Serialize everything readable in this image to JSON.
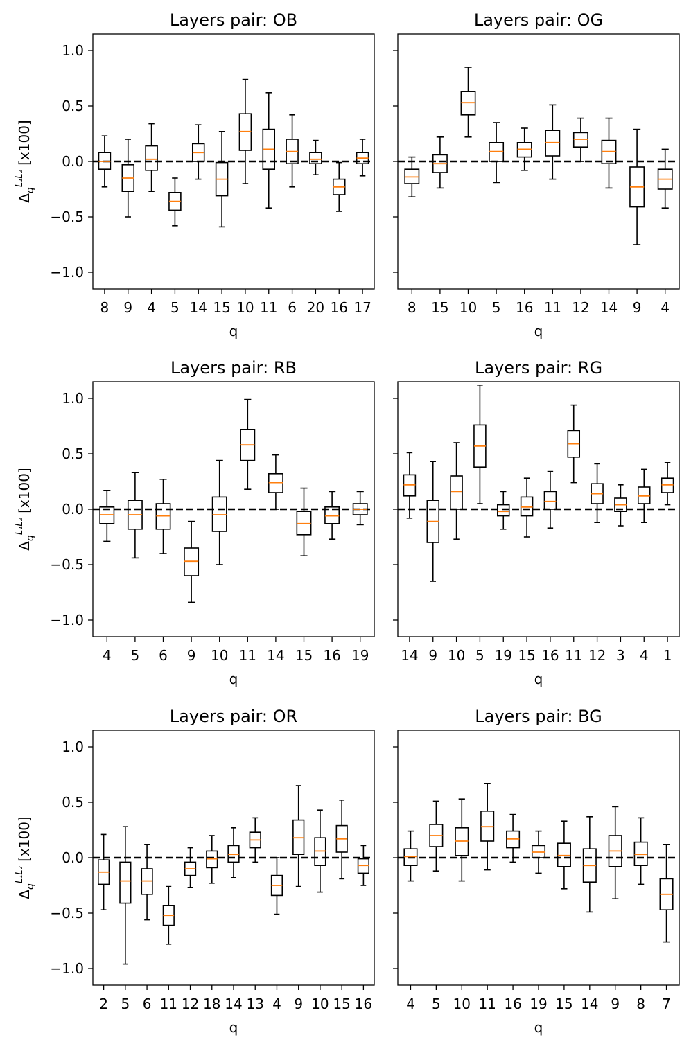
{
  "figure": {
    "ylabel_prefix": "Δ",
    "ylabel_sub": "q",
    "ylabel_sup": "L₁L₂",
    "ylabel_suffix": " [x100]",
    "ylim": [
      -1.15,
      1.15
    ],
    "yticks": [
      -1.0,
      -0.5,
      0.0,
      0.5,
      1.0
    ],
    "ytick_labels": [
      "−1.0",
      "−0.5",
      "0.0",
      "0.5",
      "1.0"
    ],
    "reference_line": 0.0,
    "colors": {
      "box": "#000000",
      "median": "#ff7f0e",
      "reference": "#000000"
    }
  },
  "chart_data": [
    {
      "type": "boxplot",
      "title": "Layers pair: OB",
      "xlabel": "q",
      "ylabel": "Δ_q^{L1L2} [x100]",
      "categories": [
        "8",
        "9",
        "4",
        "5",
        "14",
        "15",
        "10",
        "11",
        "6",
        "20",
        "16",
        "17"
      ],
      "boxes": [
        {
          "min": -0.23,
          "q1": -0.07,
          "median": 0.0,
          "q3": 0.08,
          "max": 0.23
        },
        {
          "min": -0.5,
          "q1": -0.27,
          "median": -0.15,
          "q3": -0.03,
          "max": 0.2
        },
        {
          "min": -0.27,
          "q1": -0.08,
          "median": 0.02,
          "q3": 0.14,
          "max": 0.34
        },
        {
          "min": -0.58,
          "q1": -0.44,
          "median": -0.36,
          "q3": -0.28,
          "max": -0.15
        },
        {
          "min": -0.16,
          "q1": 0.0,
          "median": 0.08,
          "q3": 0.16,
          "max": 0.33
        },
        {
          "min": -0.59,
          "q1": -0.31,
          "median": -0.16,
          "q3": -0.01,
          "max": 0.27
        },
        {
          "min": -0.2,
          "q1": 0.1,
          "median": 0.27,
          "q3": 0.43,
          "max": 0.74
        },
        {
          "min": -0.42,
          "q1": -0.07,
          "median": 0.11,
          "q3": 0.29,
          "max": 0.62
        },
        {
          "min": -0.23,
          "q1": -0.02,
          "median": 0.09,
          "q3": 0.2,
          "max": 0.42
        },
        {
          "min": -0.12,
          "q1": -0.02,
          "median": 0.02,
          "q3": 0.08,
          "max": 0.19
        },
        {
          "min": -0.45,
          "q1": -0.3,
          "median": -0.23,
          "q3": -0.16,
          "max": -0.01
        },
        {
          "min": -0.13,
          "q1": -0.02,
          "median": 0.03,
          "q3": 0.08,
          "max": 0.2
        }
      ]
    },
    {
      "type": "boxplot",
      "title": "Layers pair: OG",
      "xlabel": "q",
      "ylabel": "",
      "categories": [
        "8",
        "15",
        "10",
        "5",
        "16",
        "11",
        "12",
        "14",
        "9",
        "4"
      ],
      "boxes": [
        {
          "min": -0.32,
          "q1": -0.2,
          "median": -0.14,
          "q3": -0.07,
          "max": 0.04
        },
        {
          "min": -0.24,
          "q1": -0.1,
          "median": -0.02,
          "q3": 0.06,
          "max": 0.22
        },
        {
          "min": 0.22,
          "q1": 0.42,
          "median": 0.53,
          "q3": 0.63,
          "max": 0.85
        },
        {
          "min": -0.19,
          "q1": 0.0,
          "median": 0.09,
          "q3": 0.17,
          "max": 0.35
        },
        {
          "min": -0.08,
          "q1": 0.04,
          "median": 0.11,
          "q3": 0.17,
          "max": 0.3
        },
        {
          "min": -0.16,
          "q1": 0.05,
          "median": 0.17,
          "q3": 0.28,
          "max": 0.51
        },
        {
          "min": 0.0,
          "q1": 0.13,
          "median": 0.2,
          "q3": 0.26,
          "max": 0.39
        },
        {
          "min": -0.24,
          "q1": -0.02,
          "median": 0.09,
          "q3": 0.19,
          "max": 0.39
        },
        {
          "min": -0.75,
          "q1": -0.41,
          "median": -0.23,
          "q3": -0.05,
          "max": 0.29
        },
        {
          "min": -0.42,
          "q1": -0.25,
          "median": -0.16,
          "q3": -0.07,
          "max": 0.11
        }
      ]
    },
    {
      "type": "boxplot",
      "title": "Layers pair: RB",
      "xlabel": "q",
      "ylabel": "Δ_q^{L1L2} [x100]",
      "categories": [
        "4",
        "5",
        "6",
        "9",
        "10",
        "11",
        "14",
        "15",
        "16",
        "19"
      ],
      "boxes": [
        {
          "min": -0.29,
          "q1": -0.13,
          "median": -0.05,
          "q3": 0.02,
          "max": 0.17
        },
        {
          "min": -0.44,
          "q1": -0.18,
          "median": -0.05,
          "q3": 0.08,
          "max": 0.33
        },
        {
          "min": -0.4,
          "q1": -0.18,
          "median": -0.06,
          "q3": 0.05,
          "max": 0.27
        },
        {
          "min": -0.84,
          "q1": -0.6,
          "median": -0.47,
          "q3": -0.35,
          "max": -0.11
        },
        {
          "min": -0.5,
          "q1": -0.2,
          "median": -0.05,
          "q3": 0.11,
          "max": 0.44
        },
        {
          "min": 0.18,
          "q1": 0.44,
          "median": 0.58,
          "q3": 0.72,
          "max": 0.99
        },
        {
          "min": 0.0,
          "q1": 0.15,
          "median": 0.24,
          "q3": 0.32,
          "max": 0.49
        },
        {
          "min": -0.42,
          "q1": -0.23,
          "median": -0.13,
          "q3": -0.02,
          "max": 0.19
        },
        {
          "min": -0.27,
          "q1": -0.13,
          "median": -0.06,
          "q3": 0.02,
          "max": 0.16
        },
        {
          "min": -0.14,
          "q1": -0.05,
          "median": 0.0,
          "q3": 0.05,
          "max": 0.16
        }
      ]
    },
    {
      "type": "boxplot",
      "title": "Layers pair: RG",
      "xlabel": "q",
      "ylabel": "",
      "categories": [
        "14",
        "9",
        "10",
        "5",
        "19",
        "15",
        "16",
        "11",
        "12",
        "3",
        "4",
        "1"
      ],
      "boxes": [
        {
          "min": -0.08,
          "q1": 0.12,
          "median": 0.22,
          "q3": 0.31,
          "max": 0.51
        },
        {
          "min": -0.65,
          "q1": -0.3,
          "median": -0.11,
          "q3": 0.08,
          "max": 0.43
        },
        {
          "min": -0.27,
          "q1": 0.0,
          "median": 0.16,
          "q3": 0.3,
          "max": 0.6
        },
        {
          "min": 0.05,
          "q1": 0.38,
          "median": 0.57,
          "q3": 0.76,
          "max": 1.12
        },
        {
          "min": -0.18,
          "q1": -0.06,
          "median": -0.02,
          "q3": 0.04,
          "max": 0.16
        },
        {
          "min": -0.25,
          "q1": -0.06,
          "median": 0.02,
          "q3": 0.11,
          "max": 0.28
        },
        {
          "min": -0.17,
          "q1": 0.0,
          "median": 0.07,
          "q3": 0.16,
          "max": 0.34
        },
        {
          "min": 0.24,
          "q1": 0.47,
          "median": 0.59,
          "q3": 0.71,
          "max": 0.94
        },
        {
          "min": -0.12,
          "q1": 0.05,
          "median": 0.14,
          "q3": 0.23,
          "max": 0.41
        },
        {
          "min": -0.15,
          "q1": -0.02,
          "median": 0.04,
          "q3": 0.1,
          "max": 0.22
        },
        {
          "min": -0.12,
          "q1": 0.05,
          "median": 0.12,
          "q3": 0.2,
          "max": 0.36
        },
        {
          "min": 0.04,
          "q1": 0.15,
          "median": 0.22,
          "q3": 0.28,
          "max": 0.42
        }
      ]
    },
    {
      "type": "boxplot",
      "title": "Layers pair: OR",
      "xlabel": "q",
      "ylabel": "Δ_q^{L1L2} [x100]",
      "categories": [
        "2",
        "5",
        "6",
        "11",
        "12",
        "18",
        "14",
        "13",
        "4",
        "9",
        "10",
        "15",
        "16"
      ],
      "boxes": [
        {
          "min": -0.47,
          "q1": -0.24,
          "median": -0.13,
          "q3": -0.02,
          "max": 0.21
        },
        {
          "min": -0.96,
          "q1": -0.41,
          "median": -0.21,
          "q3": -0.04,
          "max": 0.28
        },
        {
          "min": -0.56,
          "q1": -0.33,
          "median": -0.21,
          "q3": -0.1,
          "max": 0.12
        },
        {
          "min": -0.78,
          "q1": -0.61,
          "median": -0.52,
          "q3": -0.43,
          "max": -0.26
        },
        {
          "min": -0.27,
          "q1": -0.16,
          "median": -0.1,
          "q3": -0.04,
          "max": 0.09
        },
        {
          "min": -0.23,
          "q1": -0.09,
          "median": -0.01,
          "q3": 0.06,
          "max": 0.2
        },
        {
          "min": -0.18,
          "q1": -0.04,
          "median": 0.03,
          "q3": 0.11,
          "max": 0.27
        },
        {
          "min": -0.04,
          "q1": 0.09,
          "median": 0.16,
          "q3": 0.23,
          "max": 0.36
        },
        {
          "min": -0.51,
          "q1": -0.34,
          "median": -0.25,
          "q3": -0.16,
          "max": 0.0
        },
        {
          "min": -0.26,
          "q1": 0.03,
          "median": 0.18,
          "q3": 0.34,
          "max": 0.65
        },
        {
          "min": -0.31,
          "q1": -0.07,
          "median": 0.06,
          "q3": 0.18,
          "max": 0.43
        },
        {
          "min": -0.19,
          "q1": 0.05,
          "median": 0.17,
          "q3": 0.29,
          "max": 0.52
        },
        {
          "min": -0.25,
          "q1": -0.14,
          "median": -0.07,
          "q3": -0.01,
          "max": 0.11
        }
      ]
    },
    {
      "type": "boxplot",
      "title": "Layers pair: BG",
      "xlabel": "q",
      "ylabel": "",
      "categories": [
        "4",
        "5",
        "10",
        "11",
        "16",
        "19",
        "15",
        "14",
        "9",
        "8",
        "7"
      ],
      "boxes": [
        {
          "min": -0.21,
          "q1": -0.07,
          "median": 0.01,
          "q3": 0.08,
          "max": 0.24
        },
        {
          "min": -0.12,
          "q1": 0.1,
          "median": 0.2,
          "q3": 0.3,
          "max": 0.51
        },
        {
          "min": -0.21,
          "q1": 0.02,
          "median": 0.15,
          "q3": 0.27,
          "max": 0.53
        },
        {
          "min": -0.11,
          "q1": 0.15,
          "median": 0.28,
          "q3": 0.42,
          "max": 0.67
        },
        {
          "min": -0.04,
          "q1": 0.09,
          "median": 0.17,
          "q3": 0.24,
          "max": 0.39
        },
        {
          "min": -0.14,
          "q1": 0.0,
          "median": 0.05,
          "q3": 0.11,
          "max": 0.24
        },
        {
          "min": -0.28,
          "q1": -0.08,
          "median": 0.02,
          "q3": 0.13,
          "max": 0.33
        },
        {
          "min": -0.49,
          "q1": -0.22,
          "median": -0.07,
          "q3": 0.08,
          "max": 0.37
        },
        {
          "min": -0.37,
          "q1": -0.08,
          "median": 0.06,
          "q3": 0.2,
          "max": 0.46
        },
        {
          "min": -0.24,
          "q1": -0.07,
          "median": 0.03,
          "q3": 0.14,
          "max": 0.36
        },
        {
          "min": -0.76,
          "q1": -0.47,
          "median": -0.33,
          "q3": -0.19,
          "max": 0.12
        }
      ]
    }
  ]
}
